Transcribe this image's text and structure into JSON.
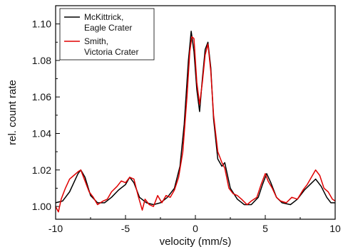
{
  "chart_data": {
    "type": "line",
    "title": "",
    "xlabel": "velocity (mm/s)",
    "ylabel": "rel. count rate",
    "xlim": [
      -10,
      10
    ],
    "ylim": [
      0.993,
      1.11
    ],
    "xticks": [
      -10,
      -5,
      0,
      5,
      10
    ],
    "yticks": [
      1.0,
      1.02,
      1.04,
      1.06,
      1.08,
      1.1
    ],
    "ytick_labels": [
      "1.00",
      "1.02",
      "1.04",
      "1.06",
      "1.08",
      "1.10"
    ],
    "grid": false,
    "legend_position": "top-left",
    "series": [
      {
        "name": "McKittrick, Eagle Crater",
        "color": "#000000",
        "x": [
          -10,
          -9.5,
          -9.0,
          -8.7,
          -8.4,
          -8.2,
          -7.9,
          -7.5,
          -7.0,
          -6.5,
          -6.0,
          -5.5,
          -5.0,
          -4.7,
          -4.4,
          -4.0,
          -3.5,
          -3.0,
          -2.5,
          -2.0,
          -1.5,
          -1.1,
          -0.8,
          -0.5,
          -0.3,
          -0.1,
          0.1,
          0.3,
          0.5,
          0.7,
          0.9,
          1.1,
          1.3,
          1.6,
          1.9,
          2.1,
          2.5,
          3.0,
          3.5,
          4.0,
          4.5,
          4.8,
          5.1,
          5.4,
          5.8,
          6.2,
          6.8,
          7.3,
          7.8,
          8.2,
          8.6,
          9.0,
          9.4,
          9.7,
          10
        ],
        "values": [
          1.002,
          1.003,
          1.008,
          1.013,
          1.018,
          1.02,
          1.016,
          1.006,
          1.002,
          1.002,
          1.005,
          1.009,
          1.012,
          1.016,
          1.013,
          1.005,
          1.002,
          1.001,
          1.002,
          1.005,
          1.01,
          1.022,
          1.045,
          1.08,
          1.096,
          1.085,
          1.064,
          1.052,
          1.07,
          1.086,
          1.09,
          1.076,
          1.048,
          1.026,
          1.022,
          1.024,
          1.01,
          1.004,
          1.001,
          1.001,
          1.005,
          1.012,
          1.018,
          1.013,
          1.005,
          1.002,
          1.001,
          1.004,
          1.009,
          1.012,
          1.015,
          1.011,
          1.005,
          1.002,
          1.002
        ]
      },
      {
        "name": "Smith, Victoria Crater",
        "color": "#e00000",
        "x": [
          -10,
          -9.8,
          -9.6,
          -9.3,
          -9.0,
          -8.7,
          -8.4,
          -8.2,
          -7.9,
          -7.6,
          -7.3,
          -7.0,
          -6.6,
          -6.3,
          -6.0,
          -5.6,
          -5.3,
          -5.0,
          -4.7,
          -4.4,
          -4.1,
          -3.8,
          -3.6,
          -3.3,
          -3.0,
          -2.7,
          -2.4,
          -2.1,
          -1.8,
          -1.5,
          -1.2,
          -0.9,
          -0.6,
          -0.4,
          -0.25,
          -0.1,
          0.1,
          0.3,
          0.5,
          0.7,
          0.9,
          1.1,
          1.3,
          1.6,
          1.9,
          2.1,
          2.4,
          2.7,
          3.0,
          3.3,
          3.7,
          4.0,
          4.4,
          4.7,
          5.0,
          5.2,
          5.5,
          5.8,
          6.1,
          6.5,
          6.9,
          7.3,
          7.7,
          8.0,
          8.3,
          8.6,
          8.9,
          9.2,
          9.5,
          9.8,
          10
        ],
        "values": [
          1.0,
          0.997,
          1.004,
          1.01,
          1.015,
          1.017,
          1.019,
          1.02,
          1.014,
          1.008,
          1.005,
          1.001,
          1.003,
          1.004,
          1.008,
          1.011,
          1.014,
          1.013,
          1.016,
          1.015,
          1.006,
          0.998,
          1.004,
          1.001,
          1.0,
          1.006,
          1.002,
          1.006,
          1.005,
          1.009,
          1.016,
          1.03,
          1.06,
          1.085,
          1.093,
          1.092,
          1.068,
          1.056,
          1.068,
          1.083,
          1.089,
          1.074,
          1.05,
          1.03,
          1.024,
          1.021,
          1.01,
          1.007,
          1.006,
          1.004,
          1.001,
          1.003,
          1.005,
          1.012,
          1.018,
          1.014,
          1.01,
          1.005,
          1.003,
          1.002,
          1.005,
          1.004,
          1.009,
          1.012,
          1.016,
          1.02,
          1.017,
          1.01,
          1.008,
          1.004,
          1.003
        ]
      }
    ]
  }
}
